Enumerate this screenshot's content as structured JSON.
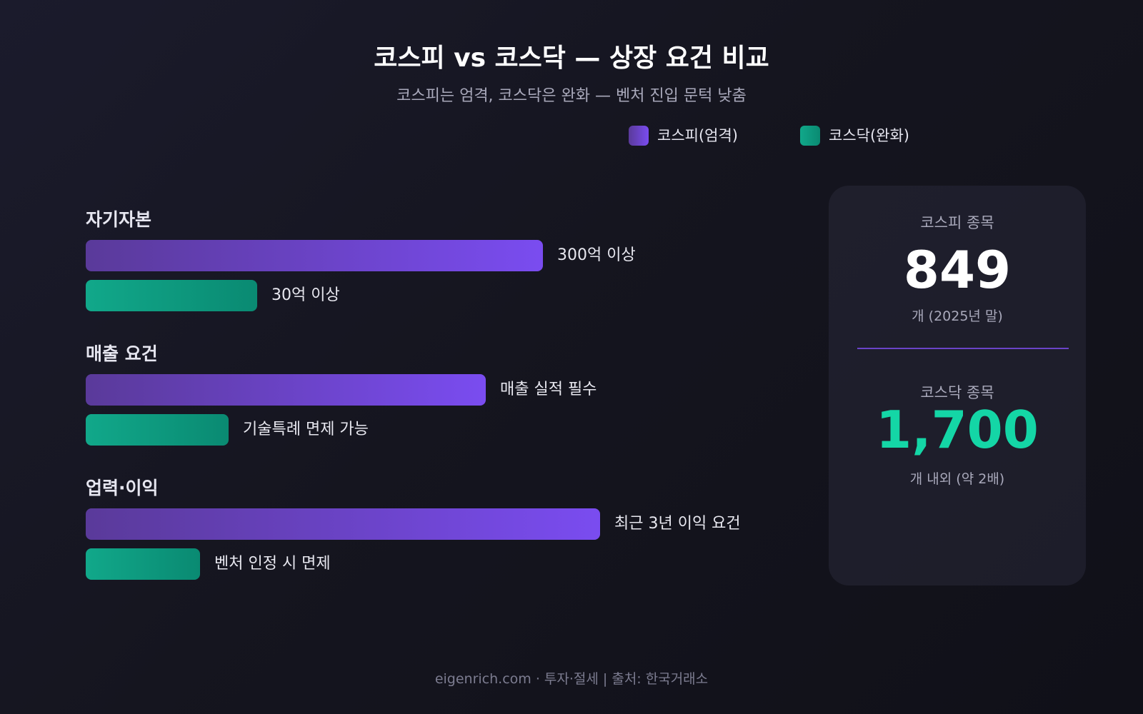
{
  "header": {
    "title": "코스피 vs 코스닥 — 상장 요건 비교",
    "subtitle": "코스피는 엄격, 코스닥은 완화 — 벤처 진입 문턱 낮춤"
  },
  "legend": [
    "코스피(엄격)",
    "코스닥(완화)"
  ],
  "groups": [
    {
      "label": "자기자본",
      "kospi": "300억 이상",
      "kosdaq": "30억 이상"
    },
    {
      "label": "매출 요건",
      "kospi": "매출 실적 필수",
      "kosdaq": "기술특례 면제 가능"
    },
    {
      "label": "업력·이익",
      "kospi": "최근 3년 이익 요건",
      "kosdaq": "벤처 인정 시 면제"
    }
  ],
  "stats": [
    {
      "label": "코스피 종목",
      "value": "849",
      "note": "개 (2025년 말)"
    },
    {
      "label": "코스닥 종목",
      "value": "1,700",
      "note": "개 내외 (약 2배)"
    }
  ],
  "footer": "eigenrich.com · 투자·절세 | 출처: 한국거래소"
}
